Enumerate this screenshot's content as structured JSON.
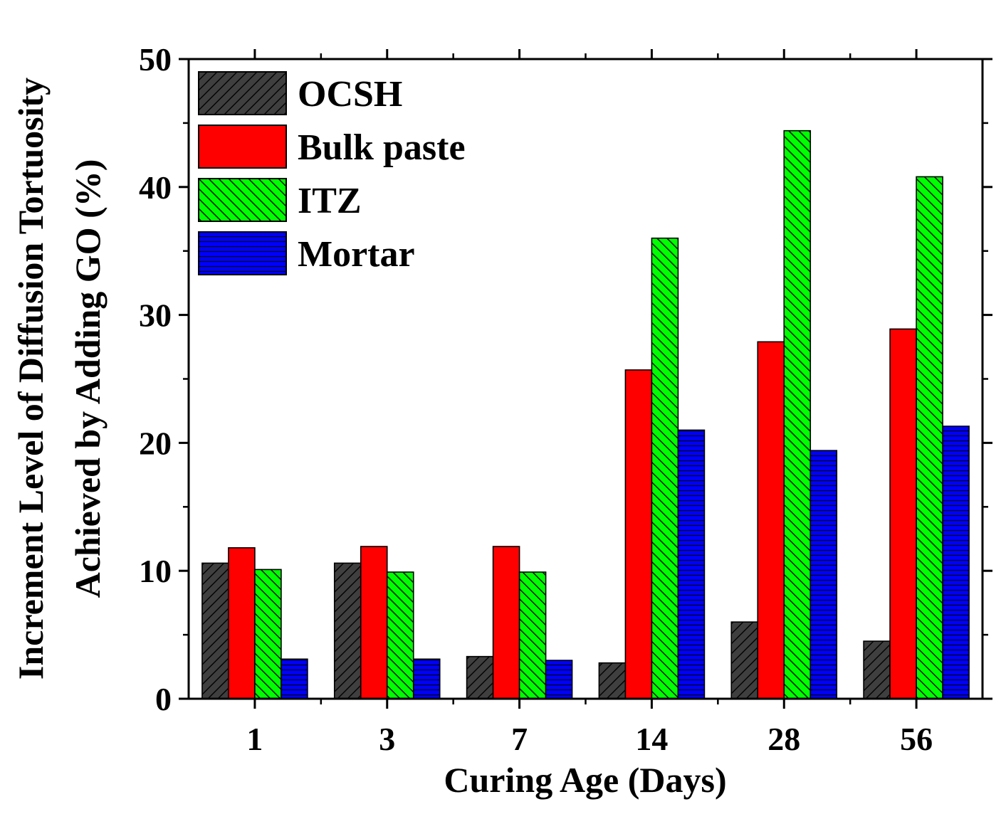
{
  "chart_data": {
    "type": "bar",
    "xlabel": "Curing Age (Days)",
    "ylabel_lines": [
      "Increment Level of Diffusion Tortuosity",
      "Achieved by Adding GO (%)"
    ],
    "categories": [
      "1",
      "3",
      "7",
      "14",
      "28",
      "56"
    ],
    "ylim": [
      0,
      50
    ],
    "yticks": [
      "0",
      "10",
      "20",
      "30",
      "40",
      "50"
    ],
    "grid": false,
    "legend_position": "top-left",
    "series": [
      {
        "name": "OCSH",
        "values": [
          10.6,
          10.6,
          3.3,
          2.8,
          6.0,
          4.5
        ],
        "color": "#3f3f3f",
        "pattern": "hatch-forward"
      },
      {
        "name": "Bulk paste",
        "values": [
          11.8,
          11.9,
          11.9,
          25.7,
          27.9,
          28.9
        ],
        "color": "#ff0000",
        "pattern": "solid"
      },
      {
        "name": "ITZ",
        "values": [
          10.1,
          9.9,
          9.9,
          36.0,
          44.4,
          40.8
        ],
        "color": "#00ff00",
        "pattern": "hatch-backward"
      },
      {
        "name": "Mortar",
        "values": [
          3.1,
          3.1,
          3.0,
          21.0,
          19.4,
          21.3
        ],
        "color": "#0000ff",
        "pattern": "hatch-horizontal"
      }
    ]
  }
}
